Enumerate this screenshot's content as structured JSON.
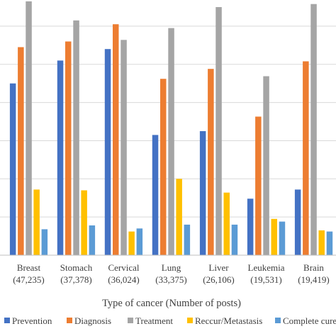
{
  "chart_data": {
    "type": "bar",
    "title": "",
    "xlabel": "Type of cancer (Number of posts)",
    "ylabel": "",
    "ylim": [
      0,
      6500
    ],
    "grid": true,
    "legend_position": "bottom",
    "categories": [
      [
        "Breast",
        "(47,235)"
      ],
      [
        "Stomach",
        "(37,378)"
      ],
      [
        "Cervical",
        "(36,024)"
      ],
      [
        "Lung",
        "(33,375)"
      ],
      [
        "Liver",
        "(26,106)"
      ],
      [
        "Leukemia",
        "(19,531)"
      ],
      [
        "Brain",
        "(19,419)"
      ]
    ],
    "series": [
      {
        "name": "Prevention",
        "color": "#4472c4",
        "values": [
          4500,
          5100,
          5400,
          3150,
          3250,
          1480,
          1720
        ]
      },
      {
        "name": "Diagnosis",
        "color": "#ed7d31",
        "values": [
          5450,
          5600,
          6050,
          4620,
          4880,
          3630,
          5080
        ]
      },
      {
        "name": "Treatment",
        "color": "#a5a5a5",
        "values": [
          6650,
          6150,
          5640,
          5950,
          6500,
          4690,
          6580
        ]
      },
      {
        "name": "Reccur/Metastasis",
        "color": "#ffc000",
        "values": [
          1720,
          1700,
          620,
          2000,
          1640,
          950,
          650
        ]
      },
      {
        "name": "Complete cure",
        "color": "#5b9bd5",
        "values": [
          680,
          780,
          700,
          800,
          800,
          880,
          620
        ]
      }
    ]
  }
}
